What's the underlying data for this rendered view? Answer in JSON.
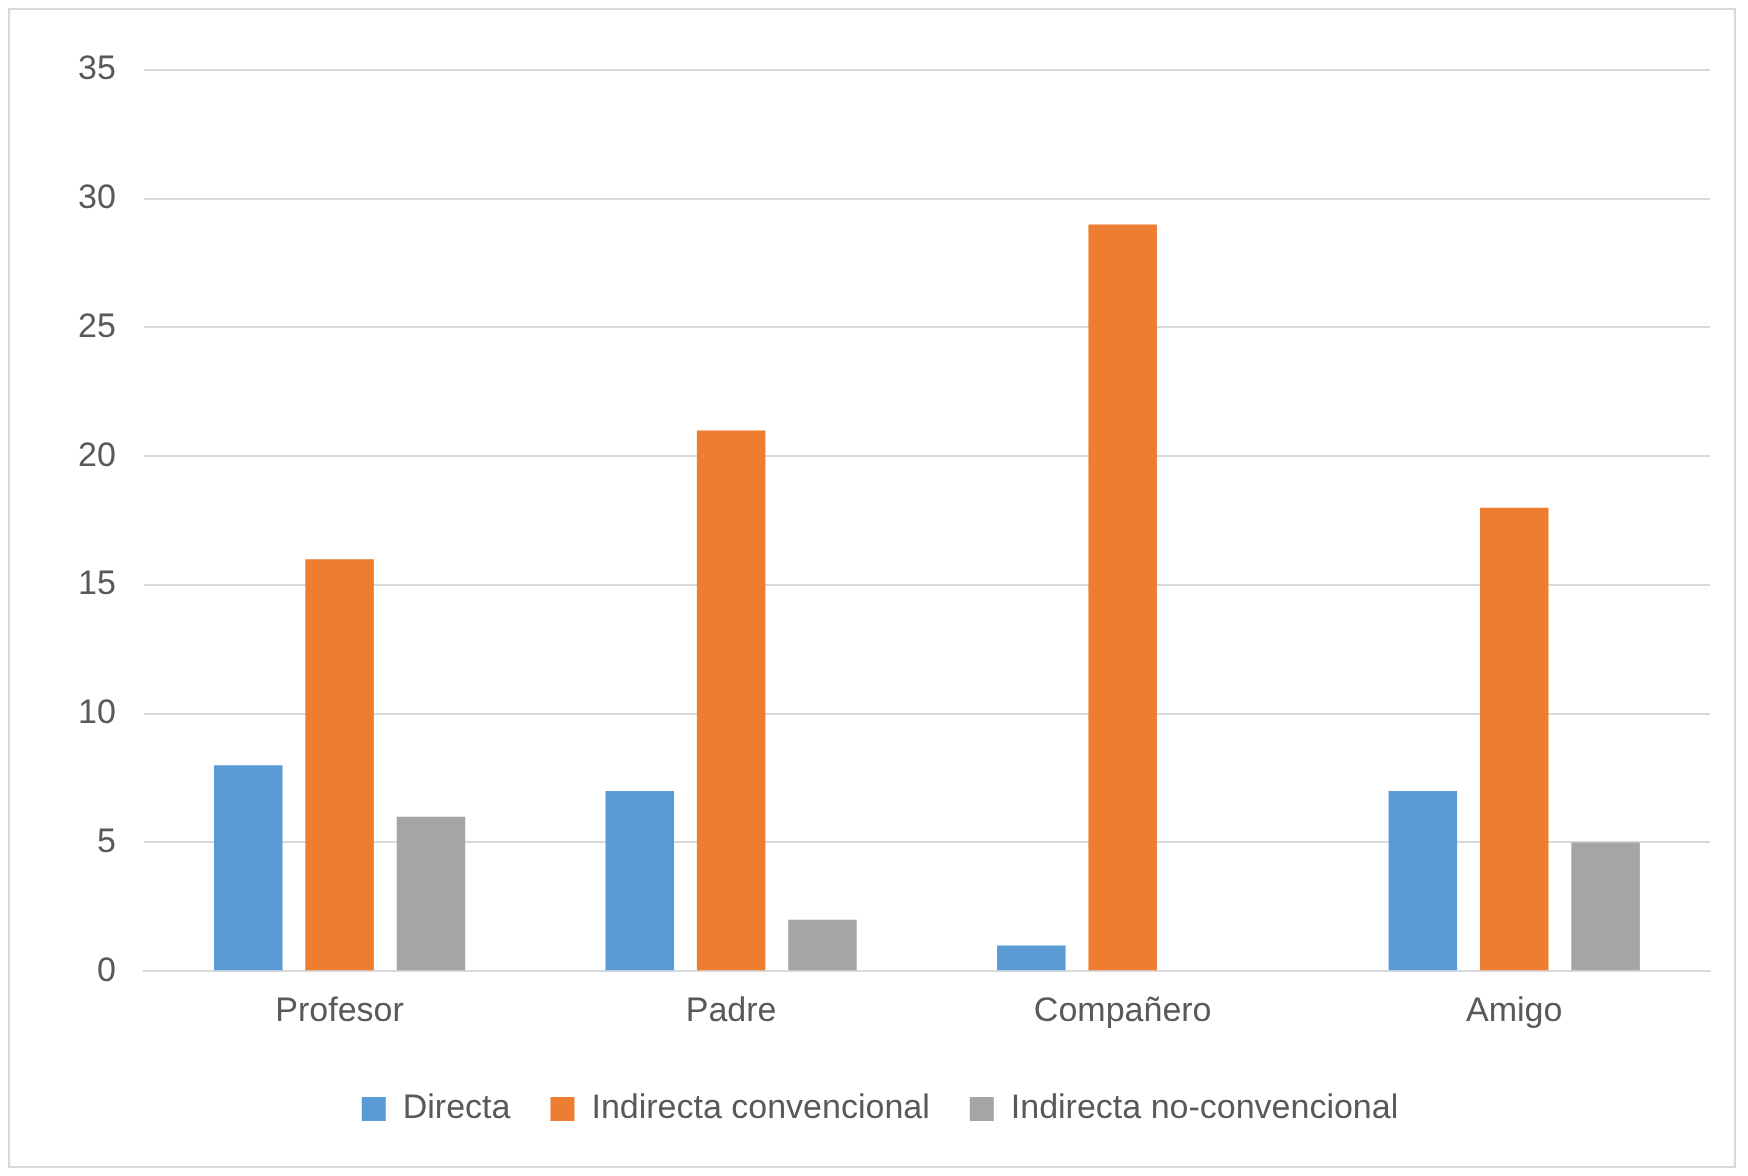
{
  "chart_data": {
    "type": "bar",
    "categories": [
      "Profesor",
      "Padre",
      "Compañero",
      "Amigo"
    ],
    "series": [
      {
        "name": "Directa",
        "color": "#5b9bd5",
        "values": [
          8,
          7,
          1,
          7
        ]
      },
      {
        "name": "Indirecta convencional",
        "color": "#ed7d31",
        "values": [
          16,
          21,
          29,
          18
        ]
      },
      {
        "name": "Indirecta no-convencional",
        "color": "#a5a5a5",
        "values": [
          6,
          2,
          0,
          5
        ]
      }
    ],
    "ylim": [
      0,
      35
    ],
    "yticks": [
      0,
      5,
      10,
      15,
      20,
      25,
      30,
      35
    ],
    "grid": "y",
    "legend": "bottom"
  }
}
